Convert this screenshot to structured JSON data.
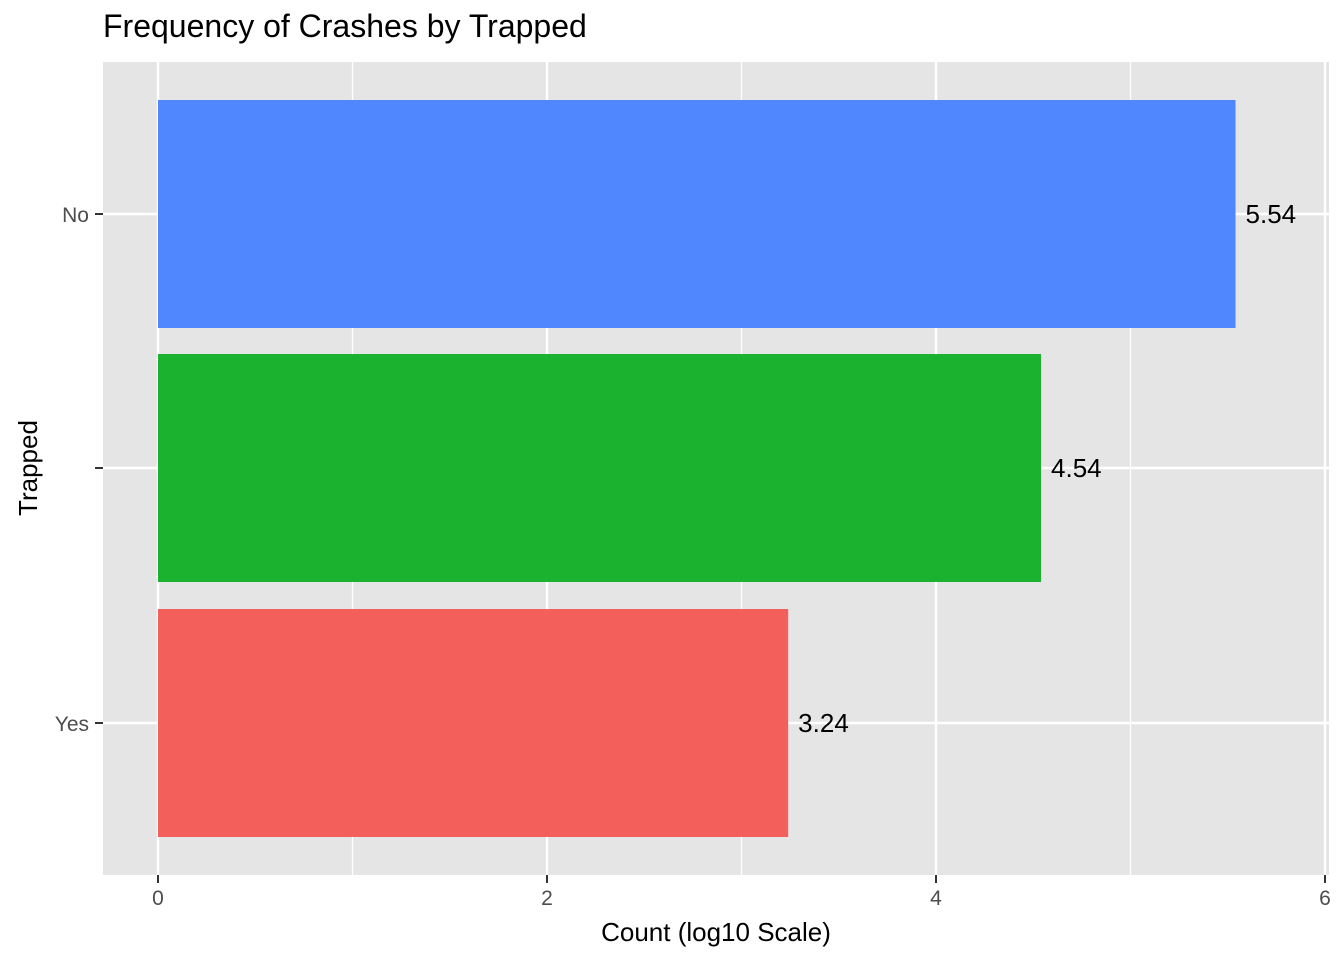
{
  "chart_data": {
    "type": "bar",
    "orientation": "horizontal",
    "title": "Frequency of Crashes by Trapped",
    "xlabel": "Count (log10 Scale)",
    "ylabel": "Trapped",
    "xlim": [
      -0.28,
      6.0
    ],
    "x_ticks": [
      0,
      2,
      4,
      6
    ],
    "x_tick_labels": [
      "0",
      "2",
      "4",
      "6"
    ],
    "grid": true,
    "legend": "none",
    "categories": [
      "No",
      "",
      "Yes"
    ],
    "values": [
      5.54,
      4.54,
      3.24
    ],
    "value_labels": [
      "5.54",
      "4.54",
      "3.24"
    ],
    "colors": [
      "#5087FF",
      "#1AB22F",
      "#F3605B"
    ],
    "panel_background": "#E5E5E5",
    "grid_color": "#FFFFFF"
  }
}
